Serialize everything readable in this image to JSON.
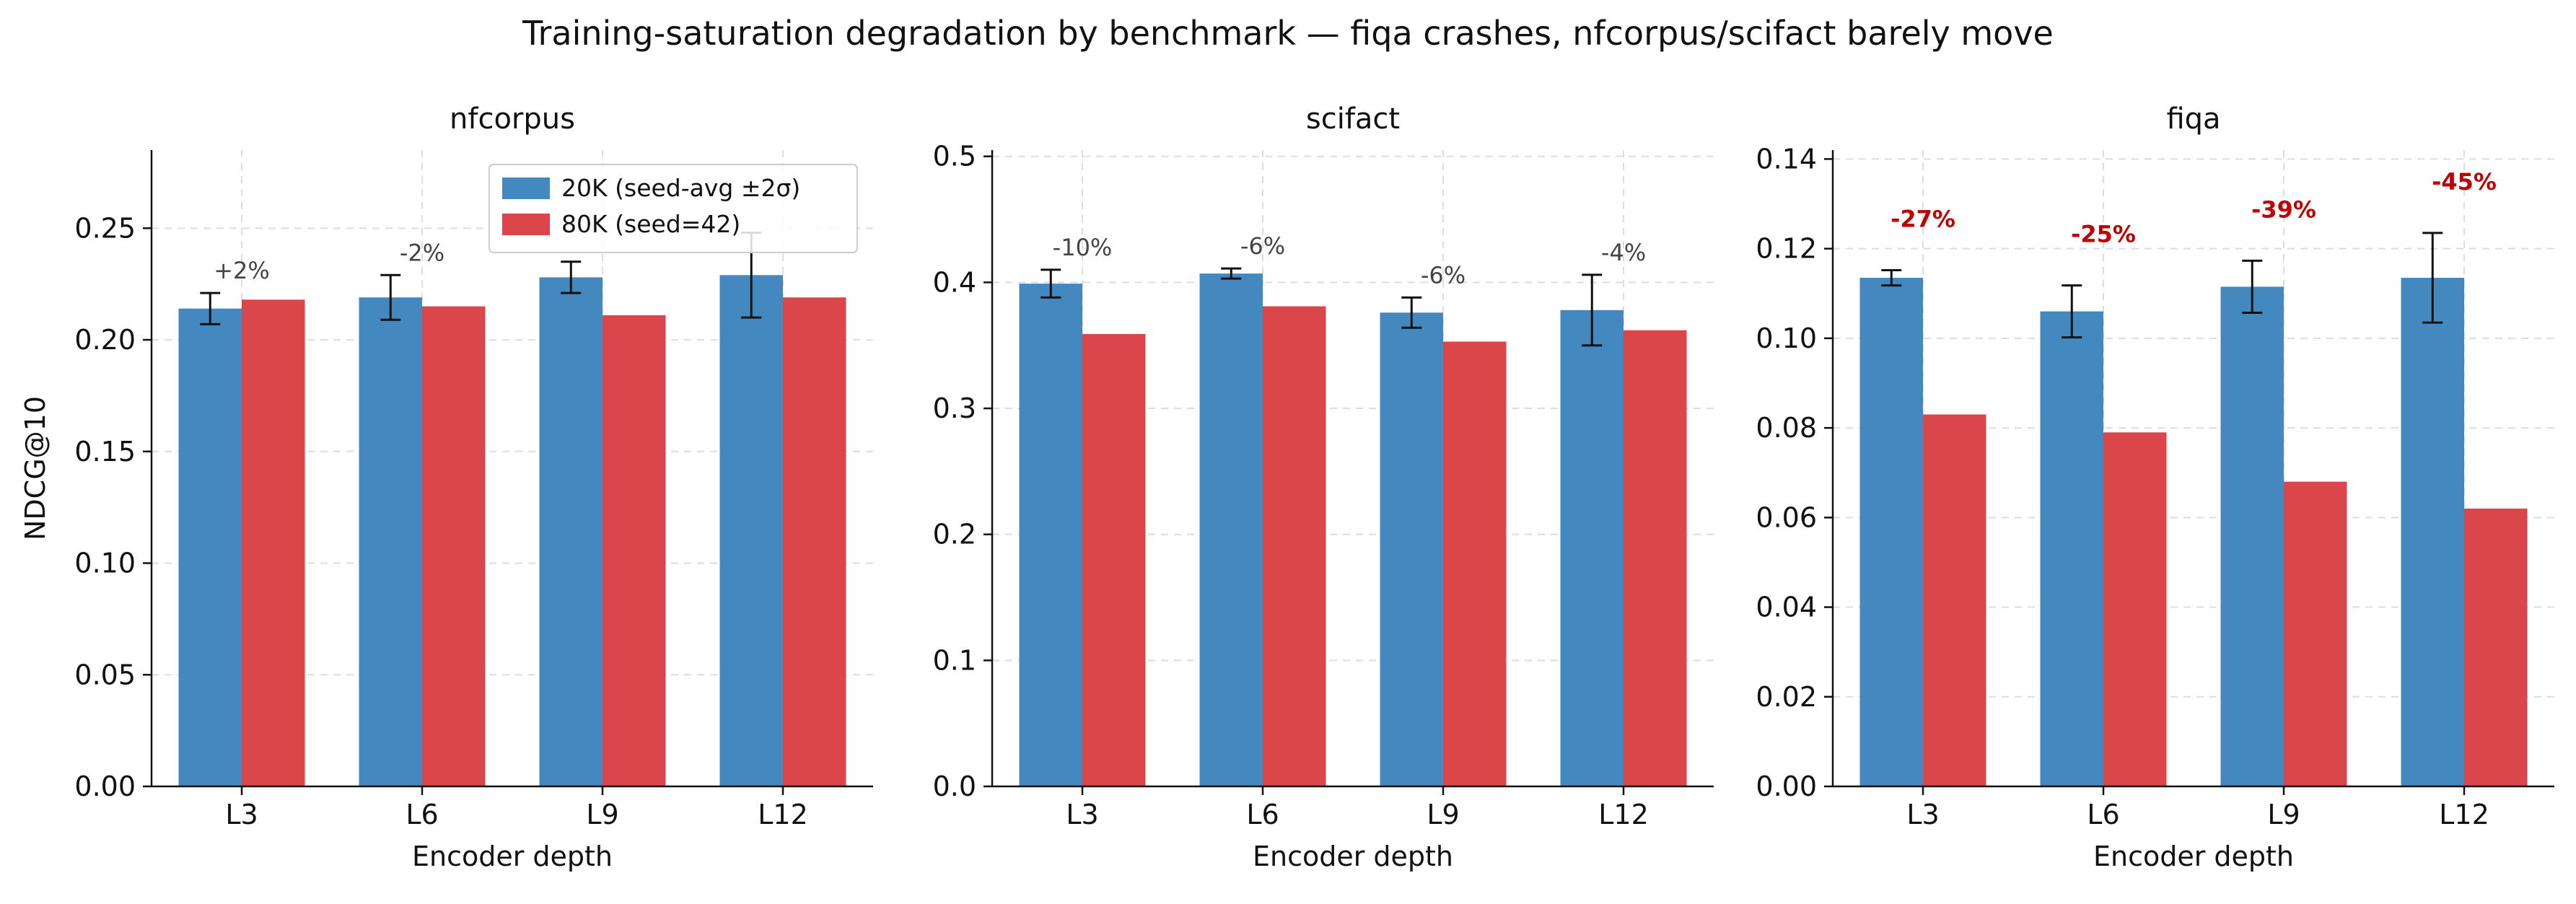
{
  "title": "Training-saturation degradation by benchmark — fiqa crashes, nfcorpus/scifact barely move",
  "colors": {
    "series_20k": "#4389c0",
    "series_80k": "#da4649",
    "delta_normal": "#444444",
    "delta_highlight": "#c00000",
    "errorbar": "#111111",
    "grid": "#dddddd"
  },
  "legend": {
    "placement": "top-right (first panel)",
    "entries": [
      "20K (seed-avg ±2σ)",
      "80K (seed=42)"
    ]
  },
  "chart_data": [
    {
      "type": "bar",
      "title": "nfcorpus",
      "xlabel": "Encoder depth",
      "ylabel": "NDCG@10",
      "categories": [
        "L3",
        "L6",
        "L9",
        "L12"
      ],
      "ylim": [
        0,
        0.285
      ],
      "yticks": [
        0.0,
        0.05,
        0.1,
        0.15,
        0.2,
        0.25
      ],
      "ytick_labels": [
        "0.00",
        "0.05",
        "0.10",
        "0.15",
        "0.20",
        "0.25"
      ],
      "grid": true,
      "series": [
        {
          "name": "20K (seed-avg ±2σ)",
          "values": [
            0.214,
            0.219,
            0.228,
            0.229
          ],
          "error": [
            0.007,
            0.01,
            0.007,
            0.019
          ]
        },
        {
          "name": "80K (seed=42)",
          "values": [
            0.218,
            0.215,
            0.211,
            0.219
          ]
        }
      ],
      "annotations": [
        "+2%",
        "-2%",
        "",
        ""
      ],
      "annotation_highlight": false
    },
    {
      "type": "bar",
      "title": "scifact",
      "xlabel": "Encoder depth",
      "ylabel": "",
      "categories": [
        "L3",
        "L6",
        "L9",
        "L12"
      ],
      "ylim": [
        0,
        0.505
      ],
      "yticks": [
        0.0,
        0.1,
        0.2,
        0.3,
        0.4,
        0.5
      ],
      "ytick_labels": [
        "0.0",
        "0.1",
        "0.2",
        "0.3",
        "0.4",
        "0.5"
      ],
      "grid": true,
      "series": [
        {
          "name": "20K (seed-avg ±2σ)",
          "values": [
            0.399,
            0.407,
            0.376,
            0.378
          ],
          "error": [
            0.011,
            0.004,
            0.012,
            0.028
          ]
        },
        {
          "name": "80K (seed=42)",
          "values": [
            0.359,
            0.381,
            0.353,
            0.362
          ]
        }
      ],
      "annotations": [
        "-10%",
        "-6%",
        "-6%",
        "-4%"
      ],
      "annotation_highlight": false
    },
    {
      "type": "bar",
      "title": "fiqa",
      "xlabel": "Encoder depth",
      "ylabel": "",
      "categories": [
        "L3",
        "L6",
        "L9",
        "L12"
      ],
      "ylim": [
        0,
        0.142
      ],
      "yticks": [
        0.0,
        0.02,
        0.04,
        0.06,
        0.08,
        0.1,
        0.12,
        0.14
      ],
      "ytick_labels": [
        "0.00",
        "0.02",
        "0.04",
        "0.06",
        "0.08",
        "0.10",
        "0.12",
        "0.14"
      ],
      "grid": true,
      "series": [
        {
          "name": "20K (seed-avg ±2σ)",
          "values": [
            0.1135,
            0.106,
            0.1115,
            0.1135
          ],
          "error": [
            0.0017,
            0.0058,
            0.0058,
            0.01
          ]
        },
        {
          "name": "80K (seed=42)",
          "values": [
            0.083,
            0.079,
            0.068,
            0.062
          ]
        }
      ],
      "annotations": [
        "-27%",
        "-25%",
        "-39%",
        "-45%"
      ],
      "annotation_highlight": true
    }
  ]
}
